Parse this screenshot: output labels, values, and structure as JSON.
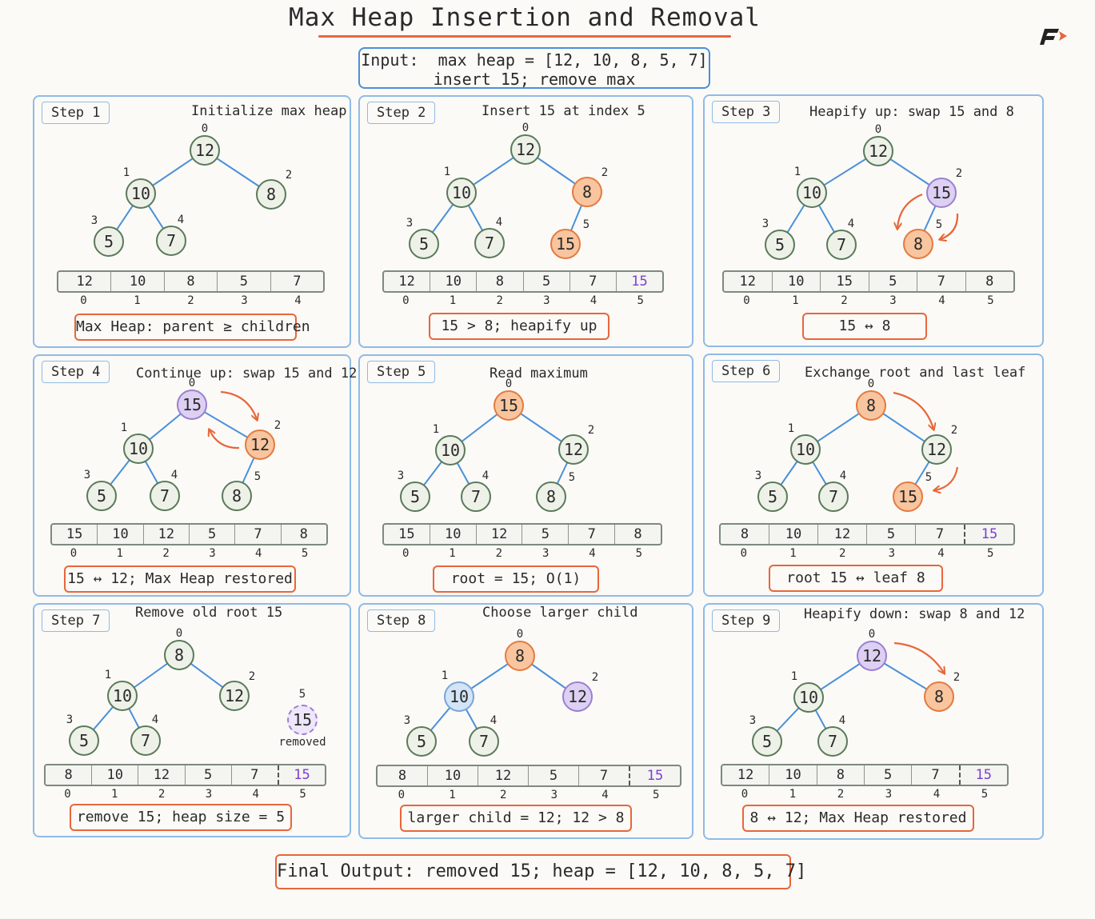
{
  "title": "Max Heap Insertion and Removal",
  "input": {
    "line1": "Input:  max heap = [12, 10, 8, 5, 7]",
    "line2": "insert 15; remove max"
  },
  "colors": {
    "orange": "#e8663a",
    "blue": "#4a90d9",
    "purple": "#7b3fd1",
    "green": "#5a7a5a"
  },
  "logo_icon": "f-arrow-logo-icon",
  "steps": [
    {
      "label": "Step 1",
      "title": "Initialize max heap",
      "nodes": [
        {
          "i": "0",
          "v": "12"
        },
        {
          "i": "1",
          "v": "10"
        },
        {
          "i": "2",
          "v": "8"
        },
        {
          "i": "3",
          "v": "5"
        },
        {
          "i": "4",
          "v": "7"
        }
      ],
      "array": [
        "12",
        "10",
        "8",
        "5",
        "7"
      ],
      "indices": [
        "0",
        "1",
        "2",
        "3",
        "4"
      ],
      "caption": "Max Heap: parent ≥ children"
    },
    {
      "label": "Step 2",
      "title": "Insert 15 at index 5",
      "nodes": [
        {
          "i": "0",
          "v": "12"
        },
        {
          "i": "1",
          "v": "10"
        },
        {
          "i": "2",
          "v": "8"
        },
        {
          "i": "3",
          "v": "5"
        },
        {
          "i": "4",
          "v": "7"
        },
        {
          "i": "5",
          "v": "15"
        }
      ],
      "array": [
        "12",
        "10",
        "8",
        "5",
        "7",
        "15"
      ],
      "indices": [
        "0",
        "1",
        "2",
        "3",
        "4",
        "5"
      ],
      "caption": "15 > 8; heapify up"
    },
    {
      "label": "Step 3",
      "title": "Heapify up: swap 15 and 8",
      "nodes": [
        {
          "i": "0",
          "v": "12"
        },
        {
          "i": "1",
          "v": "10"
        },
        {
          "i": "2",
          "v": "15"
        },
        {
          "i": "3",
          "v": "5"
        },
        {
          "i": "4",
          "v": "7"
        },
        {
          "i": "5",
          "v": "8"
        }
      ],
      "array": [
        "12",
        "10",
        "15",
        "5",
        "7",
        "8"
      ],
      "indices": [
        "0",
        "1",
        "2",
        "3",
        "4",
        "5"
      ],
      "caption": "15 ↔ 8"
    },
    {
      "label": "Step 4",
      "title": "Continue up: swap 15 and 12",
      "nodes": [
        {
          "i": "0",
          "v": "15"
        },
        {
          "i": "1",
          "v": "10"
        },
        {
          "i": "2",
          "v": "12"
        },
        {
          "i": "3",
          "v": "5"
        },
        {
          "i": "4",
          "v": "7"
        },
        {
          "i": "5",
          "v": "8"
        }
      ],
      "array": [
        "15",
        "10",
        "12",
        "5",
        "7",
        "8"
      ],
      "indices": [
        "0",
        "1",
        "2",
        "3",
        "4",
        "5"
      ],
      "caption": "15 ↔ 12; Max Heap restored"
    },
    {
      "label": "Step 5",
      "title": "Read maximum",
      "nodes": [
        {
          "i": "0",
          "v": "15"
        },
        {
          "i": "1",
          "v": "10"
        },
        {
          "i": "2",
          "v": "12"
        },
        {
          "i": "3",
          "v": "5"
        },
        {
          "i": "4",
          "v": "7"
        },
        {
          "i": "5",
          "v": "8"
        }
      ],
      "array": [
        "15",
        "10",
        "12",
        "5",
        "7",
        "8"
      ],
      "indices": [
        "0",
        "1",
        "2",
        "3",
        "4",
        "5"
      ],
      "caption": "root = 15; O(1)"
    },
    {
      "label": "Step 6",
      "title": "Exchange root and last leaf",
      "nodes": [
        {
          "i": "0",
          "v": "8"
        },
        {
          "i": "1",
          "v": "10"
        },
        {
          "i": "2",
          "v": "12"
        },
        {
          "i": "3",
          "v": "5"
        },
        {
          "i": "4",
          "v": "7"
        },
        {
          "i": "5",
          "v": "15"
        }
      ],
      "array": [
        "8",
        "10",
        "12",
        "5",
        "7",
        "15"
      ],
      "indices": [
        "0",
        "1",
        "2",
        "3",
        "4",
        "5"
      ],
      "caption": "root 15 ↔ leaf 8"
    },
    {
      "label": "Step 7",
      "title": "Remove old root 15",
      "nodes": [
        {
          "i": "0",
          "v": "8"
        },
        {
          "i": "1",
          "v": "10"
        },
        {
          "i": "2",
          "v": "12"
        },
        {
          "i": "3",
          "v": "5"
        },
        {
          "i": "4",
          "v": "7"
        },
        {
          "i": "5",
          "v": "15"
        }
      ],
      "removed_label": "removed",
      "array": [
        "8",
        "10",
        "12",
        "5",
        "7",
        "15"
      ],
      "indices": [
        "0",
        "1",
        "2",
        "3",
        "4",
        "5"
      ],
      "caption": "remove 15; heap size = 5"
    },
    {
      "label": "Step 8",
      "title": "Choose larger child",
      "nodes": [
        {
          "i": "0",
          "v": "8"
        },
        {
          "i": "1",
          "v": "10"
        },
        {
          "i": "2",
          "v": "12"
        },
        {
          "i": "3",
          "v": "5"
        },
        {
          "i": "4",
          "v": "7"
        }
      ],
      "array": [
        "8",
        "10",
        "12",
        "5",
        "7",
        "15"
      ],
      "indices": [
        "0",
        "1",
        "2",
        "3",
        "4",
        "5"
      ],
      "caption": "larger child = 12; 12 > 8"
    },
    {
      "label": "Step 9",
      "title": "Heapify down: swap 8 and 12",
      "nodes": [
        {
          "i": "0",
          "v": "12"
        },
        {
          "i": "1",
          "v": "10"
        },
        {
          "i": "2",
          "v": "8"
        },
        {
          "i": "3",
          "v": "5"
        },
        {
          "i": "4",
          "v": "7"
        }
      ],
      "array": [
        "12",
        "10",
        "8",
        "5",
        "7",
        "15"
      ],
      "indices": [
        "0",
        "1",
        "2",
        "3",
        "4",
        "5"
      ],
      "caption": "8 ↔ 12; Max Heap restored"
    }
  ],
  "final_output": "Final Output: removed 15; heap = [12, 10, 8, 5, 7]"
}
